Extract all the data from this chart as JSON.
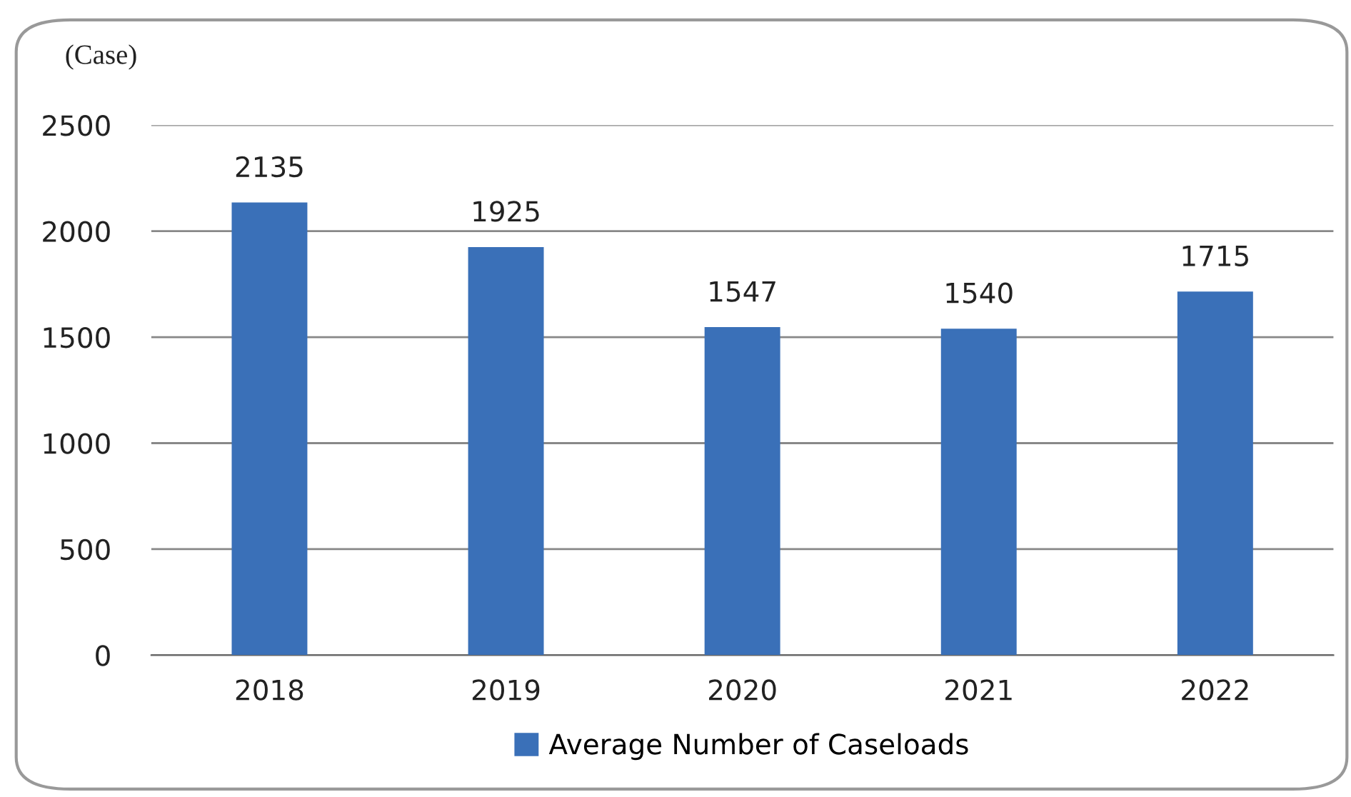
{
  "chart_data": {
    "type": "bar",
    "ylabel": "(Case)",
    "categories": [
      "2018",
      "2019",
      "2020",
      "2021",
      "2022"
    ],
    "series": [
      {
        "name": "Average Number of Caseloads",
        "color": "#3a70b8",
        "values": [
          2135,
          1925,
          1547,
          1540,
          1715
        ]
      }
    ],
    "ylim": [
      0,
      2500
    ],
    "yticks": [
      0,
      500,
      1000,
      1500,
      2000,
      2500
    ],
    "grid": "y",
    "legend": "bottom",
    "data_labels": true
  }
}
